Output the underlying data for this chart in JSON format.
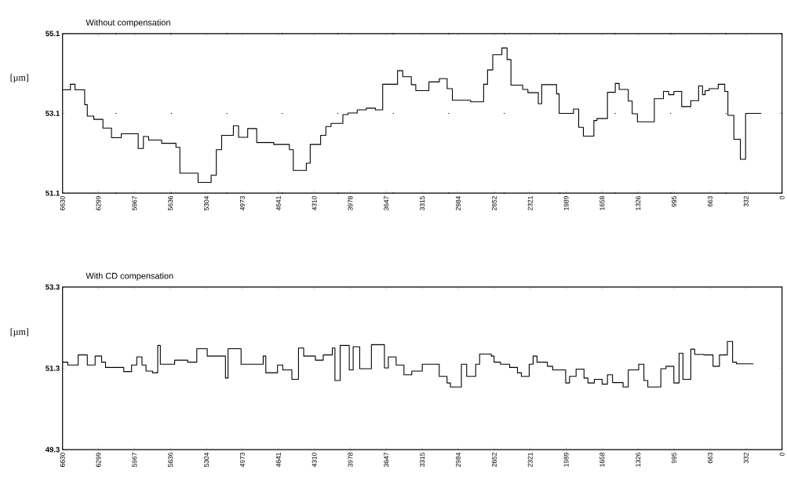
{
  "chart_data": [
    {
      "type": "step",
      "title": "Without compensation",
      "ylabel": "[µm]",
      "xlim": [
        6630,
        0
      ],
      "ylim": [
        51.1,
        55.1
      ],
      "yticks": [
        51.1,
        53.1,
        55.1
      ],
      "xticks": [
        6630,
        6299,
        5967,
        5636,
        5304,
        4973,
        4641,
        4310,
        3978,
        3647,
        3315,
        2984,
        2652,
        2321,
        1989,
        1658,
        1326,
        995,
        663,
        332,
        0
      ],
      "grid": "y",
      "series": [
        {
          "color": "#000000",
          "x": [
            6630,
            6558,
            6515,
            6426,
            6402,
            6342,
            6258,
            6179,
            6089,
            5933,
            5885,
            5837,
            5717,
            5585,
            5549,
            5381,
            5261,
            5213,
            5164,
            5056,
            5008,
            4924,
            4841,
            4684,
            4540,
            4504,
            4384,
            4348,
            4252,
            4204,
            4156,
            4047,
            3999,
            3915,
            3831,
            3747,
            3680,
            3543,
            3495,
            3416,
            3375,
            3254,
            3158,
            3086,
            3038,
            2870,
            2750,
            2714,
            2666,
            2582,
            2534,
            2498,
            2390,
            2342,
            2246,
            2215,
            2078,
            2054,
            1922,
            1874,
            1831,
            1734,
            1706,
            1609,
            1537,
            1501,
            1417,
            1381,
            1333,
            1177,
            1093,
            1045,
            997,
            925,
            841,
            769,
            733,
            709,
            672,
            588,
            528,
            499,
            444,
            384,
            336,
            192
          ],
          "values": [
            53.69,
            53.83,
            53.69,
            53.32,
            53.03,
            52.95,
            52.73,
            52.49,
            52.59,
            52.22,
            52.52,
            52.43,
            52.35,
            52.25,
            51.6,
            51.37,
            51.55,
            52.19,
            52.55,
            52.79,
            52.5,
            52.72,
            52.37,
            52.32,
            52.19,
            51.67,
            51.85,
            52.32,
            52.55,
            52.77,
            52.85,
            53.07,
            53.11,
            53.19,
            53.23,
            53.19,
            53.83,
            54.17,
            54.02,
            53.82,
            53.67,
            53.89,
            53.97,
            53.72,
            53.43,
            53.39,
            53.83,
            54.19,
            54.57,
            54.74,
            54.45,
            53.81,
            53.7,
            53.62,
            53.34,
            53.82,
            53.59,
            53.1,
            53.21,
            52.75,
            52.53,
            52.92,
            52.97,
            53.63,
            53.85,
            53.7,
            53.41,
            53.09,
            52.89,
            53.47,
            53.65,
            53.57,
            53.65,
            53.27,
            53.42,
            53.79,
            53.57,
            53.67,
            53.72,
            53.83,
            53.65,
            53.05,
            52.45,
            51.95,
            53.1,
            53.1
          ]
        }
      ]
    },
    {
      "type": "step",
      "title": "With CD compensation",
      "ylabel": "[µm]",
      "xlim": [
        6630,
        0
      ],
      "ylim": [
        49.3,
        53.3
      ],
      "yticks": [
        49.3,
        51.3,
        53.3
      ],
      "xticks": [
        6630,
        6299,
        5967,
        5636,
        5304,
        4973,
        4641,
        4310,
        3978,
        3647,
        3315,
        2984,
        2652,
        2321,
        1989,
        1658,
        1326,
        995,
        663,
        332,
        0
      ],
      "series": [
        {
          "color": "#000000",
          "x": [
            6630,
            6582,
            6486,
            6402,
            6330,
            6270,
            6234,
            6066,
            5994,
            5946,
            5898,
            5861,
            5801,
            5753,
            5729,
            5597,
            5477,
            5393,
            5297,
            5129,
            5105,
            4985,
            4781,
            4757,
            4649,
            4601,
            4517,
            4456,
            4408,
            4300,
            4228,
            4144,
            4120,
            4072,
            3988,
            3952,
            3892,
            3784,
            3664,
            3628,
            3556,
            3484,
            3412,
            3315,
            3159,
            3087,
            3056,
            2955,
            2906,
            2823,
            2787,
            2679,
            2654,
            2594,
            2510,
            2438,
            2402,
            2330,
            2294,
            2258,
            2162,
            2114,
            1994,
            1958,
            1898,
            1825,
            1789,
            1730,
            1658,
            1609,
            1562,
            1465,
            1417,
            1321,
            1273,
            1237,
            1117,
            1069,
            997,
            949,
            913,
            841,
            805,
            721,
            636,
            577,
            504,
            456,
            420,
            264
          ],
          "values": [
            51.45,
            51.38,
            51.63,
            51.38,
            51.6,
            51.45,
            51.32,
            51.22,
            51.38,
            51.58,
            51.38,
            51.23,
            51.19,
            51.86,
            51.4,
            51.5,
            51.45,
            51.78,
            51.6,
            51.06,
            51.78,
            51.4,
            51.6,
            51.19,
            51.38,
            51.26,
            51.03,
            51.8,
            51.6,
            51.5,
            51.63,
            51.8,
            51.0,
            51.86,
            51.26,
            51.83,
            51.29,
            51.88,
            51.31,
            51.58,
            51.38,
            51.14,
            51.23,
            51.4,
            51.1,
            50.94,
            50.84,
            51.4,
            51.1,
            51.4,
            51.65,
            51.6,
            51.45,
            51.4,
            51.32,
            51.19,
            51.1,
            51.4,
            51.6,
            51.45,
            51.35,
            51.26,
            50.94,
            51.1,
            51.28,
            51.06,
            50.94,
            51.03,
            50.91,
            51.14,
            50.95,
            50.84,
            51.26,
            51.4,
            51.0,
            50.84,
            51.29,
            51.35,
            50.94,
            51.67,
            51.03,
            51.77,
            51.64,
            51.63,
            51.35,
            51.63,
            51.96,
            51.45,
            51.41,
            51.41
          ]
        }
      ]
    }
  ]
}
